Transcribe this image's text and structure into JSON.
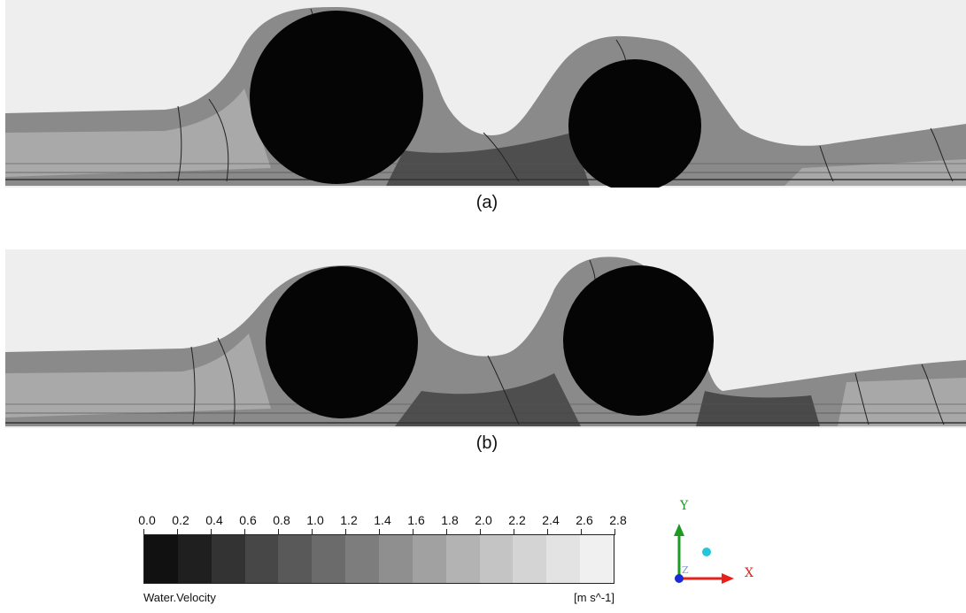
{
  "panels": [
    {
      "id": "a",
      "caption": "(a)"
    },
    {
      "id": "b",
      "caption": "(b)"
    }
  ],
  "legend": {
    "variable": "Water.Velocity",
    "unit": "[m s^-1]",
    "ticks": [
      "0.0",
      "0.2",
      "0.4",
      "0.6",
      "0.8",
      "1.0",
      "1.2",
      "1.4",
      "1.6",
      "1.8",
      "2.0",
      "2.2",
      "2.4",
      "2.6",
      "2.8"
    ],
    "colors": [
      "#111111",
      "#1f1f1f",
      "#333333",
      "#474747",
      "#595959",
      "#6b6b6b",
      "#7d7d7d",
      "#8f8f8f",
      "#a1a1a1",
      "#b3b3b3",
      "#c4c4c4",
      "#d4d4d4",
      "#e3e3e3",
      "#f0f0f0"
    ]
  },
  "axes": {
    "x_label": "X",
    "y_label": "Y",
    "z_label": "Z",
    "x_color": "#e8201a",
    "y_color": "#1e9a22",
    "z_color": "#1a2ad8",
    "marker_color": "#22c8d8"
  }
}
